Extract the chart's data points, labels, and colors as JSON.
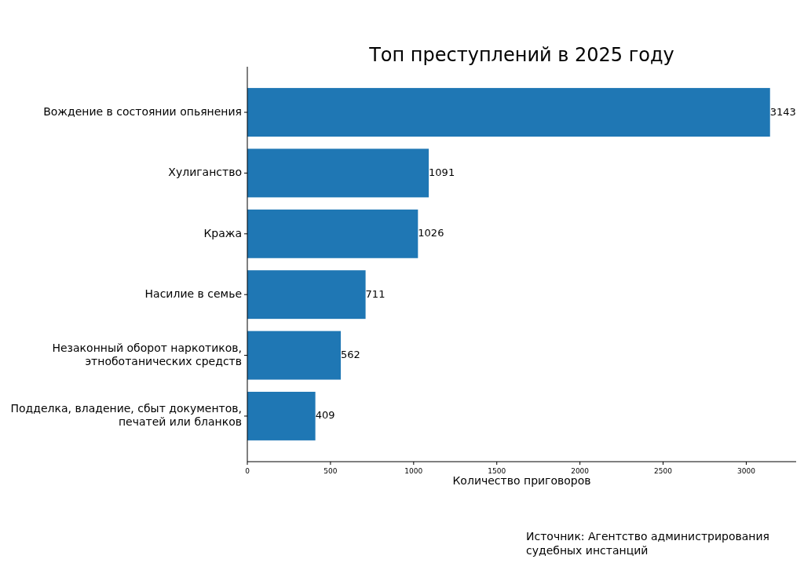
{
  "chart_data": {
    "type": "bar",
    "orientation": "horizontal",
    "title": "Топ преступлений в 2025 году",
    "xlabel": "Количество приговоров",
    "categories": [
      "Вождение в состоянии опьянения",
      "Хулиганство",
      "Кража",
      "Насилие в семье",
      "Незаконный оборот наркотиков,\nэтноботанических средств",
      "Подделка, владение, сбыт документов,\nпечатей или бланков"
    ],
    "values": [
      3143,
      1091,
      1026,
      711,
      562,
      409
    ],
    "color": "#1f77b4",
    "xlim": [
      0,
      3300
    ],
    "xticks": [
      0,
      500,
      1000,
      1500,
      2000,
      2500,
      3000
    ],
    "data_labels": true,
    "annotations": [
      "Источник: Агентство администрирования\nсудебных инстанций"
    ]
  }
}
